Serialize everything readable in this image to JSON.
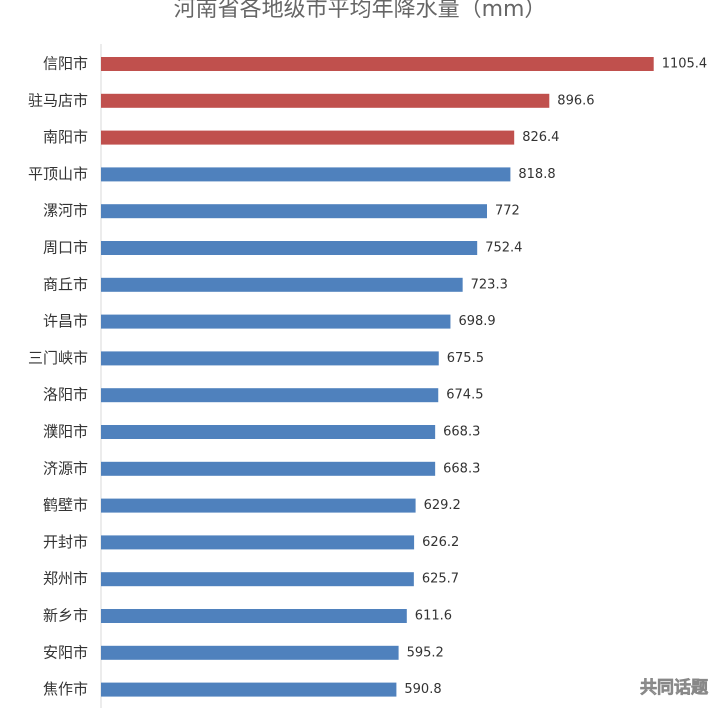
{
  "chart_data": {
    "type": "barh",
    "title": "河南省各地级市平均年降水量（mm）",
    "categories": [
      "信阳市",
      "驻马店市",
      "南阳市",
      "平顶山市",
      "漯河市",
      "周口市",
      "商丘市",
      "许昌市",
      "三门峡市",
      "洛阳市",
      "濮阳市",
      "济源市",
      "鹤壁市",
      "开封市",
      "郑州市",
      "新乡市",
      "安阳市",
      "焦作市"
    ],
    "values": [
      1105.4,
      896.6,
      826.4,
      818.8,
      772,
      752.4,
      723.3,
      698.9,
      675.5,
      674.5,
      668.3,
      668.3,
      629.2,
      626.2,
      625.7,
      611.6,
      595.2,
      590.8
    ],
    "colors": [
      "#c0504d",
      "#c0504d",
      "#c0504d",
      "#4f81bd",
      "#4f81bd",
      "#4f81bd",
      "#4f81bd",
      "#4f81bd",
      "#4f81bd",
      "#4f81bd",
      "#4f81bd",
      "#4f81bd",
      "#4f81bd",
      "#4f81bd",
      "#4f81bd",
      "#4f81bd",
      "#4f81bd",
      "#4f81bd"
    ],
    "xlim": [
      0,
      1200
    ]
  },
  "watermark": "共同话题"
}
